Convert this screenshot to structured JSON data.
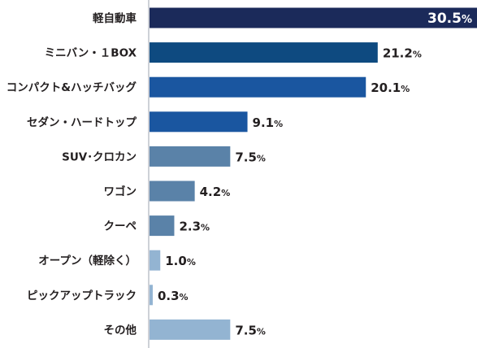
{
  "chart_data": {
    "type": "bar",
    "orientation": "horizontal",
    "categories": [
      "軽自動車",
      "ミニバン・１BOX",
      "コンパクト&ハッチバッグ",
      "セダン・ハードトップ",
      "SUV･クロカン",
      "ワゴン",
      "クーペ",
      "オープン（軽除く）",
      "ピックアップトラック",
      "その他"
    ],
    "values": [
      30.5,
      21.2,
      20.1,
      9.1,
      7.5,
      4.2,
      2.3,
      1.0,
      0.3,
      7.5
    ],
    "value_labels": [
      "30.5",
      "21.2",
      "20.1",
      "9.1",
      "7.5",
      "4.2",
      "2.3",
      "1.0",
      "0.3",
      "7.5"
    ],
    "value_unit": "%",
    "bar_colors": [
      "#1b2a5a",
      "#0e4a80",
      "#1a56a0",
      "#1a56a0",
      "#5a82a8",
      "#5a82a8",
      "#5a82a8",
      "#93b4d2",
      "#93b4d2",
      "#93b4d2"
    ],
    "xlim": [
      0,
      30.5
    ],
    "grid": false,
    "legend": "none"
  }
}
